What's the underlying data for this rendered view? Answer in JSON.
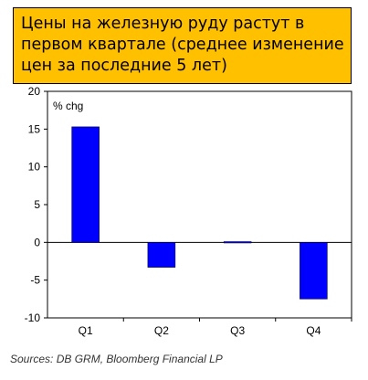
{
  "title_lines": [
    "Цены на железную руду растут в",
    "первом квартале (среднее изменение",
    "цен за последние 5 лет)"
  ],
  "source": "Sources: DB GRM, Bloomberg Financial LP",
  "colors": {
    "title_background": "#ffc000",
    "bar": "#0000ff"
  },
  "chart_data": {
    "type": "bar",
    "unit_label": "% chg",
    "categories": [
      "Q1",
      "Q2",
      "Q3",
      "Q4"
    ],
    "values": [
      15.3,
      -3.3,
      0.1,
      -7.5
    ],
    "ylim": [
      -10,
      20
    ],
    "yticks": [
      "20",
      "15",
      "10",
      "5",
      "0",
      "-5",
      "-10"
    ],
    "grid": false,
    "legend": "none"
  }
}
